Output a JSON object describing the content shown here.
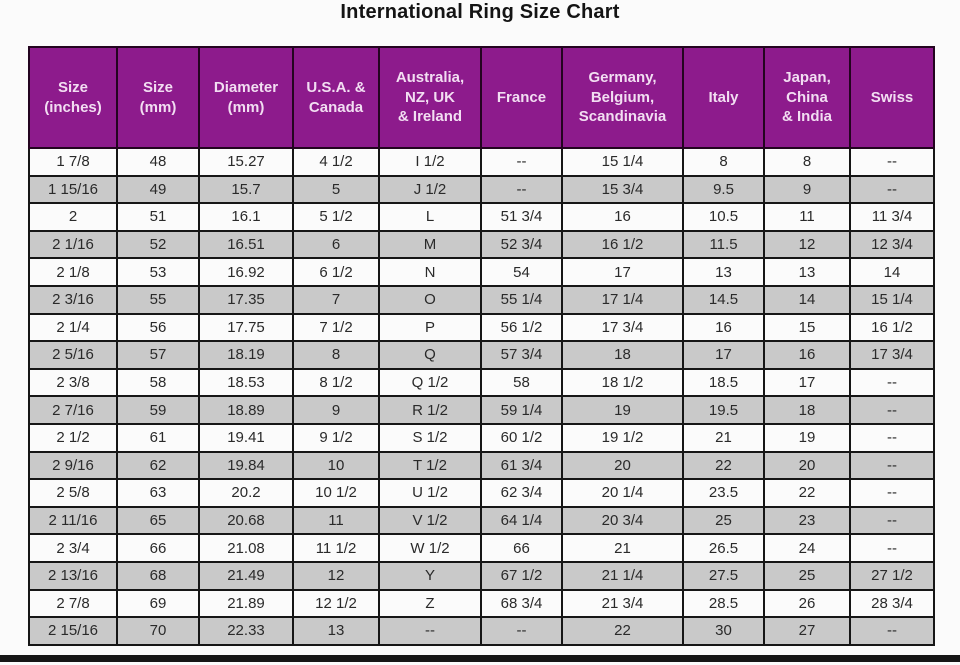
{
  "title": "International Ring Size Chart",
  "colors": {
    "header_bg": "#8d1b8c",
    "header_text": "#f2def2",
    "header_border": "#23041f",
    "border": "#161616",
    "row_bg": "#fbfbfb",
    "row_alt_bg": "#c9c9c9"
  },
  "chart_data": {
    "type": "table",
    "title": "International Ring Size Chart",
    "columns": [
      "Size\n(inches)",
      "Size\n(mm)",
      "Diameter\n(mm)",
      "U.S.A. &\nCanada",
      "Australia,\nNZ, UK\n& Ireland",
      "France",
      "Germany,\nBelgium,\nScandinavia",
      "Italy",
      "Japan,\nChina\n& India",
      "Swiss"
    ],
    "rows": [
      [
        "1 7/8",
        "48",
        "15.27",
        "4 1/2",
        "I 1/2",
        "--",
        "15 1/4",
        "8",
        "8",
        "--"
      ],
      [
        "1 15/16",
        "49",
        "15.7",
        "5",
        "J 1/2",
        "--",
        "15 3/4",
        "9.5",
        "9",
        "--"
      ],
      [
        "2",
        "51",
        "16.1",
        "5 1/2",
        "L",
        "51 3/4",
        "16",
        "10.5",
        "11",
        "11 3/4"
      ],
      [
        "2 1/16",
        "52",
        "16.51",
        "6",
        "M",
        "52 3/4",
        "16 1/2",
        "11.5",
        "12",
        "12 3/4"
      ],
      [
        "2 1/8",
        "53",
        "16.92",
        "6 1/2",
        "N",
        "54",
        "17",
        "13",
        "13",
        "14"
      ],
      [
        "2 3/16",
        "55",
        "17.35",
        "7",
        "O",
        "55 1/4",
        "17 1/4",
        "14.5",
        "14",
        "15 1/4"
      ],
      [
        "2 1/4",
        "56",
        "17.75",
        "7 1/2",
        "P",
        "56 1/2",
        "17 3/4",
        "16",
        "15",
        "16 1/2"
      ],
      [
        "2 5/16",
        "57",
        "18.19",
        "8",
        "Q",
        "57 3/4",
        "18",
        "17",
        "16",
        "17 3/4"
      ],
      [
        "2 3/8",
        "58",
        "18.53",
        "8 1/2",
        "Q 1/2",
        "58",
        "18 1/2",
        "18.5",
        "17",
        "--"
      ],
      [
        "2 7/16",
        "59",
        "18.89",
        "9",
        "R 1/2",
        "59 1/4",
        "19",
        "19.5",
        "18",
        "--"
      ],
      [
        "2 1/2",
        "61",
        "19.41",
        "9 1/2",
        "S 1/2",
        "60 1/2",
        "19 1/2",
        "21",
        "19",
        "--"
      ],
      [
        "2 9/16",
        "62",
        "19.84",
        "10",
        "T 1/2",
        "61 3/4",
        "20",
        "22",
        "20",
        "--"
      ],
      [
        "2 5/8",
        "63",
        "20.2",
        "10 1/2",
        "U 1/2",
        "62 3/4",
        "20 1/4",
        "23.5",
        "22",
        "--"
      ],
      [
        "2 11/16",
        "65",
        "20.68",
        "11",
        "V 1/2",
        "64 1/4",
        "20 3/4",
        "25",
        "23",
        "--"
      ],
      [
        "2 3/4",
        "66",
        "21.08",
        "11 1/2",
        "W 1/2",
        "66",
        "21",
        "26.5",
        "24",
        "--"
      ],
      [
        "2 13/16",
        "68",
        "21.49",
        "12",
        "Y",
        "67 1/2",
        "21 1/4",
        "27.5",
        "25",
        "27 1/2"
      ],
      [
        "2 7/8",
        "69",
        "21.89",
        "12 1/2",
        "Z",
        "68 3/4",
        "21 3/4",
        "28.5",
        "26",
        "28 3/4"
      ],
      [
        "2 15/16",
        "70",
        "22.33",
        "13",
        "--",
        "--",
        "22",
        "30",
        "27",
        "--"
      ]
    ]
  }
}
